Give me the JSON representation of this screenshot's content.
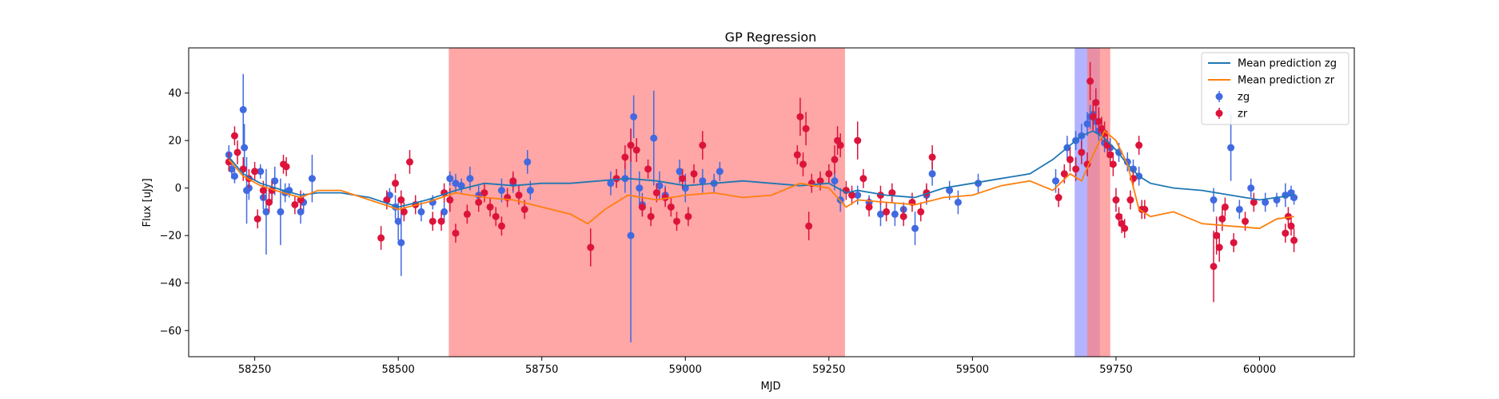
{
  "chart_data": {
    "type": "scatter",
    "title": "GP Regression",
    "xlabel": "MJD",
    "ylabel": "Flux [uJy]",
    "xlim": [
      58135,
      60165
    ],
    "ylim": [
      -71,
      59
    ],
    "xticks": [
      58250,
      58500,
      58750,
      59000,
      59250,
      59500,
      59750,
      60000
    ],
    "yticks": [
      -60,
      -40,
      -20,
      0,
      20,
      40
    ],
    "grid": false,
    "legend_position": "top-right",
    "legend": [
      "Mean prediction zg",
      "Mean prediction zr",
      "zg",
      "zr"
    ],
    "shaded_regions": [
      {
        "band": "zr",
        "x0": 58588,
        "x1": 59278,
        "color": "#ff8080"
      },
      {
        "band": "zg",
        "x0": 59678,
        "x1": 59722,
        "color": "#8080ff"
      },
      {
        "band": "zr",
        "x0": 59700,
        "x1": 59740,
        "color": "#ff8080"
      }
    ],
    "lines": [
      {
        "name": "Mean prediction zg",
        "color": "#1f77b4",
        "x": [
          58205,
          58230,
          58260,
          58300,
          58330,
          58360,
          58400,
          58450,
          58500,
          58550,
          58600,
          58650,
          58700,
          58750,
          58800,
          58850,
          58900,
          58950,
          59000,
          59050,
          59100,
          59150,
          59200,
          59250,
          59280,
          59300,
          59350,
          59400,
          59450,
          59500,
          59550,
          59600,
          59640,
          59670,
          59690,
          59710,
          59730,
          59750,
          59770,
          59790,
          59810,
          59850,
          59900,
          59950,
          60000,
          60030,
          60060
        ],
        "y": [
          13,
          6,
          2,
          -1,
          -3,
          -2,
          -2,
          -4,
          -8,
          -5,
          -1,
          2,
          1,
          2,
          2,
          3,
          4,
          3,
          1,
          2,
          3,
          2,
          1,
          2,
          -2,
          -1,
          -3,
          -4,
          0,
          2,
          4,
          6,
          12,
          18,
          22,
          24,
          21,
          16,
          10,
          5,
          2,
          0,
          -1,
          -3,
          -5,
          -4,
          -3
        ]
      },
      {
        "name": "Mean prediction zr",
        "color": "#ff7f0e",
        "x": [
          58205,
          58230,
          58260,
          58300,
          58330,
          58360,
          58400,
          58450,
          58500,
          58550,
          58600,
          58650,
          58700,
          58750,
          58800,
          58830,
          58860,
          58900,
          58950,
          59000,
          59050,
          59100,
          59150,
          59200,
          59250,
          59280,
          59300,
          59350,
          59400,
          59450,
          59500,
          59550,
          59600,
          59640,
          59670,
          59690,
          59710,
          59730,
          59750,
          59770,
          59790,
          59810,
          59850,
          59900,
          59950,
          60000,
          60030,
          60060
        ],
        "y": [
          12,
          5,
          1,
          -2,
          -4,
          -1,
          -1,
          -5,
          -9,
          -6,
          -2,
          -4,
          -5,
          -8,
          -11,
          -15,
          -9,
          -3,
          -5,
          -3,
          -2,
          -4,
          -3,
          2,
          0,
          -8,
          -5,
          -6,
          -7,
          -4,
          -3,
          1,
          3,
          -1,
          6,
          3,
          14,
          24,
          20,
          10,
          -9,
          -12,
          -10,
          -15,
          -16,
          -17,
          -13,
          -12
        ]
      }
    ],
    "series": [
      {
        "name": "zg",
        "color": "#4169e1",
        "points": [
          [
            58205,
            14,
            4
          ],
          [
            58210,
            8,
            4
          ],
          [
            58215,
            5,
            3
          ],
          [
            58230,
            33,
            15
          ],
          [
            58232,
            17,
            10
          ],
          [
            58236,
            -1,
            14
          ],
          [
            58240,
            0,
            5
          ],
          [
            58260,
            7,
            3
          ],
          [
            58265,
            -4,
            5
          ],
          [
            58270,
            -10,
            18
          ],
          [
            58280,
            -1,
            5
          ],
          [
            58285,
            3,
            6
          ],
          [
            58295,
            -10,
            14
          ],
          [
            58303,
            -2,
            4
          ],
          [
            58310,
            -1,
            3
          ],
          [
            58330,
            -10,
            5
          ],
          [
            58335,
            -6,
            4
          ],
          [
            58350,
            4,
            10
          ],
          [
            58485,
            -3,
            3
          ],
          [
            58495,
            -8,
            5
          ],
          [
            58500,
            -14,
            8
          ],
          [
            58505,
            -23,
            14
          ],
          [
            58540,
            -10,
            4
          ],
          [
            58560,
            -6,
            3
          ],
          [
            58580,
            -10,
            4
          ],
          [
            58590,
            4,
            3
          ],
          [
            58600,
            2,
            4
          ],
          [
            58610,
            1,
            3
          ],
          [
            58625,
            4,
            5
          ],
          [
            58640,
            -3,
            4
          ],
          [
            58680,
            -1,
            5
          ],
          [
            58700,
            2,
            4
          ],
          [
            58725,
            11,
            5
          ],
          [
            58730,
            -1,
            4
          ],
          [
            58870,
            2,
            5
          ],
          [
            58895,
            4,
            6
          ],
          [
            58905,
            -20,
            45
          ],
          [
            58910,
            30,
            9
          ],
          [
            58920,
            0,
            7
          ],
          [
            58925,
            -7,
            5
          ],
          [
            58945,
            21,
            20
          ],
          [
            58955,
            1,
            6
          ],
          [
            58965,
            -3,
            4
          ],
          [
            58990,
            7,
            5
          ],
          [
            59000,
            0,
            6
          ],
          [
            59030,
            3,
            5
          ],
          [
            59050,
            2,
            4
          ],
          [
            59060,
            7,
            4
          ],
          [
            59260,
            3,
            4
          ],
          [
            59270,
            -5,
            5
          ],
          [
            59300,
            -3,
            4
          ],
          [
            59320,
            -6,
            3
          ],
          [
            59340,
            -11,
            5
          ],
          [
            59365,
            -11,
            5
          ],
          [
            59380,
            -9,
            3
          ],
          [
            59400,
            -17,
            7
          ],
          [
            59420,
            -3,
            4
          ],
          [
            59430,
            6,
            5
          ],
          [
            59460,
            -1,
            4
          ],
          [
            59475,
            -6,
            5
          ],
          [
            59510,
            2,
            4
          ],
          [
            59645,
            3,
            5
          ],
          [
            59665,
            17,
            5
          ],
          [
            59680,
            20,
            4
          ],
          [
            59690,
            22,
            5
          ],
          [
            59700,
            27,
            5
          ],
          [
            59705,
            30,
            5
          ],
          [
            59710,
            31,
            6
          ],
          [
            59715,
            28,
            4
          ],
          [
            59720,
            24,
            4
          ],
          [
            59730,
            19,
            4
          ],
          [
            59740,
            17,
            4
          ],
          [
            59755,
            15,
            4
          ],
          [
            59770,
            11,
            4
          ],
          [
            59780,
            8,
            4
          ],
          [
            59790,
            5,
            4
          ],
          [
            59920,
            -5,
            5
          ],
          [
            59950,
            17,
            14
          ],
          [
            59965,
            -9,
            4
          ],
          [
            59985,
            0,
            4
          ],
          [
            60010,
            -6,
            4
          ],
          [
            60030,
            -5,
            3
          ],
          [
            60045,
            -3,
            5
          ],
          [
            60055,
            -2,
            3
          ],
          [
            60060,
            -4,
            3
          ]
        ]
      },
      {
        "name": "zr",
        "color": "#dc143c",
        "points": [
          [
            58205,
            11,
            4
          ],
          [
            58215,
            22,
            4
          ],
          [
            58220,
            15,
            5
          ],
          [
            58230,
            8,
            5
          ],
          [
            58240,
            4,
            4
          ],
          [
            58250,
            7,
            4
          ],
          [
            58255,
            -13,
            4
          ],
          [
            58265,
            -1,
            4
          ],
          [
            58275,
            -6,
            4
          ],
          [
            58280,
            -1,
            4
          ],
          [
            58300,
            10,
            4
          ],
          [
            58305,
            9,
            4
          ],
          [
            58320,
            -7,
            4
          ],
          [
            58330,
            -5,
            4
          ],
          [
            58470,
            -21,
            5
          ],
          [
            58480,
            -5,
            4
          ],
          [
            58495,
            2,
            4
          ],
          [
            58505,
            -5,
            4
          ],
          [
            58510,
            -10,
            4
          ],
          [
            58520,
            11,
            5
          ],
          [
            58530,
            -7,
            4
          ],
          [
            58560,
            -14,
            4
          ],
          [
            58575,
            -14,
            4
          ],
          [
            58580,
            -2,
            4
          ],
          [
            58590,
            -5,
            5
          ],
          [
            58600,
            -19,
            4
          ],
          [
            58620,
            -11,
            4
          ],
          [
            58640,
            -6,
            4
          ],
          [
            58650,
            -2,
            4
          ],
          [
            58660,
            -8,
            4
          ],
          [
            58670,
            -12,
            4
          ],
          [
            58680,
            -16,
            4
          ],
          [
            58690,
            -4,
            4
          ],
          [
            58700,
            3,
            4
          ],
          [
            58710,
            -3,
            4
          ],
          [
            58720,
            -9,
            4
          ],
          [
            58835,
            -25,
            8
          ],
          [
            58880,
            4,
            4
          ],
          [
            58895,
            13,
            5
          ],
          [
            58905,
            18,
            7
          ],
          [
            58915,
            16,
            5
          ],
          [
            58925,
            -8,
            4
          ],
          [
            58935,
            8,
            4
          ],
          [
            58940,
            -12,
            4
          ],
          [
            58950,
            -2,
            4
          ],
          [
            58965,
            -4,
            4
          ],
          [
            58975,
            -8,
            4
          ],
          [
            58985,
            -14,
            4
          ],
          [
            58995,
            4,
            4
          ],
          [
            59005,
            -12,
            4
          ],
          [
            59015,
            6,
            4
          ],
          [
            59030,
            18,
            6
          ],
          [
            59195,
            14,
            4
          ],
          [
            59200,
            30,
            8
          ],
          [
            59205,
            10,
            5
          ],
          [
            59210,
            25,
            7
          ],
          [
            59215,
            -16,
            6
          ],
          [
            59220,
            2,
            4
          ],
          [
            59235,
            3,
            4
          ],
          [
            59250,
            6,
            4
          ],
          [
            59260,
            12,
            6
          ],
          [
            59265,
            20,
            6
          ],
          [
            59270,
            18,
            5
          ],
          [
            59280,
            -1,
            4
          ],
          [
            59290,
            -3,
            4
          ],
          [
            59300,
            20,
            8
          ],
          [
            59310,
            4,
            4
          ],
          [
            59320,
            -8,
            4
          ],
          [
            59340,
            -3,
            4
          ],
          [
            59350,
            -10,
            4
          ],
          [
            59360,
            -2,
            4
          ],
          [
            59380,
            -12,
            4
          ],
          [
            59395,
            -6,
            4
          ],
          [
            59410,
            -10,
            4
          ],
          [
            59420,
            -2,
            4
          ],
          [
            59430,
            13,
            5
          ],
          [
            59650,
            -4,
            4
          ],
          [
            59660,
            6,
            4
          ],
          [
            59670,
            12,
            5
          ],
          [
            59680,
            8,
            5
          ],
          [
            59690,
            15,
            5
          ],
          [
            59700,
            10,
            5
          ],
          [
            59705,
            45,
            8
          ],
          [
            59710,
            30,
            6
          ],
          [
            59715,
            36,
            6
          ],
          [
            59720,
            28,
            6
          ],
          [
            59725,
            25,
            5
          ],
          [
            59730,
            23,
            5
          ],
          [
            59735,
            18,
            5
          ],
          [
            59740,
            14,
            5
          ],
          [
            59745,
            10,
            5
          ],
          [
            59750,
            -5,
            5
          ],
          [
            59755,
            -12,
            4
          ],
          [
            59760,
            -15,
            4
          ],
          [
            59765,
            -17,
            4
          ],
          [
            59775,
            -5,
            4
          ],
          [
            59780,
            4,
            4
          ],
          [
            59790,
            18,
            4
          ],
          [
            59795,
            -9,
            4
          ],
          [
            59800,
            -9,
            4
          ],
          [
            59920,
            -33,
            15
          ],
          [
            59925,
            -20,
            8
          ],
          [
            59930,
            -25,
            6
          ],
          [
            59935,
            -13,
            5
          ],
          [
            59940,
            -8,
            4
          ],
          [
            59955,
            -23,
            4
          ],
          [
            59975,
            -14,
            4
          ],
          [
            59990,
            -6,
            4
          ],
          [
            60045,
            -19,
            4
          ],
          [
            60050,
            -12,
            4
          ],
          [
            60055,
            -16,
            4
          ],
          [
            60060,
            -22,
            5
          ]
        ]
      }
    ]
  }
}
